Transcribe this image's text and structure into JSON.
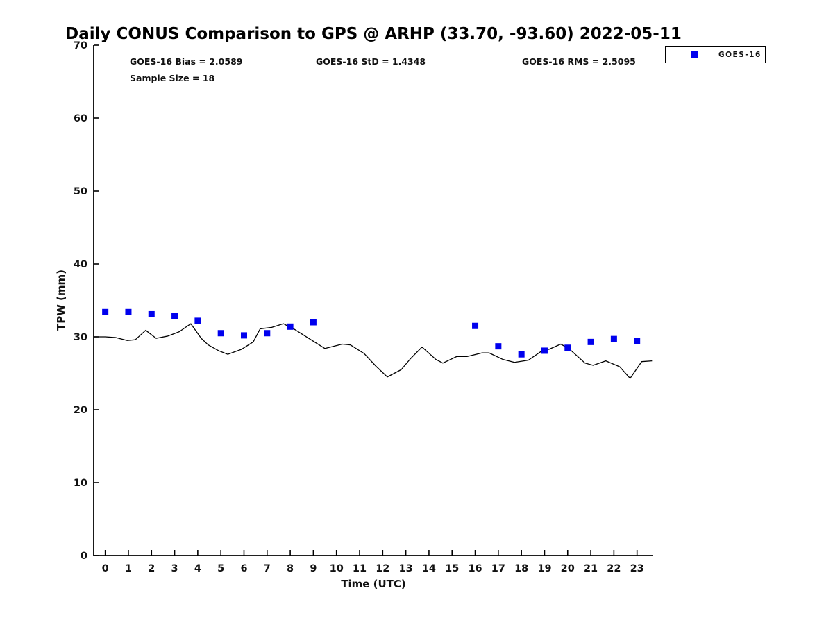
{
  "chart_data": {
    "type": "line+scatter",
    "title": "Daily CONUS Comparison to GPS @ ARHP (33.70, -93.60) 2022-05-11",
    "station": "ARHP",
    "latitude": 33.7,
    "longitude": -93.6,
    "date": "2022-05-11",
    "xlabel": "Time (UTC)",
    "ylabel": "TPW (mm)",
    "xlim": [
      -0.5,
      23.7
    ],
    "ylim": [
      0,
      70
    ],
    "x_ticks": [
      0,
      1,
      2,
      3,
      4,
      5,
      6,
      7,
      8,
      9,
      10,
      11,
      12,
      13,
      14,
      15,
      16,
      17,
      18,
      19,
      20,
      21,
      22,
      23
    ],
    "y_ticks": [
      0,
      10,
      20,
      30,
      40,
      50,
      60,
      70
    ],
    "grid": false,
    "legend_position": "top-right",
    "stats": {
      "bias_text": "GOES-16 Bias = 2.0589",
      "std_text": "GOES-16 StD = 1.4348",
      "rms_text": "GOES-16 RMS = 2.5095",
      "sample_text": "Sample Size = 18",
      "bias": 2.0589,
      "std": 1.4348,
      "rms": 2.5095,
      "sample_size": 18
    },
    "legend": {
      "label": "GOES-16",
      "marker_color": "#0000ee",
      "marker": "square"
    },
    "series": [
      {
        "name": "GPS",
        "type": "line",
        "color": "#000000",
        "points": [
          [
            -0.5,
            30.0
          ],
          [
            0.0,
            30.0
          ],
          [
            0.45,
            29.9
          ],
          [
            0.95,
            29.5
          ],
          [
            1.3,
            29.6
          ],
          [
            1.75,
            30.9
          ],
          [
            2.2,
            29.8
          ],
          [
            2.7,
            30.1
          ],
          [
            3.2,
            30.7
          ],
          [
            3.7,
            31.8
          ],
          [
            4.15,
            29.8
          ],
          [
            4.45,
            28.9
          ],
          [
            4.9,
            28.1
          ],
          [
            5.3,
            27.6
          ],
          [
            5.9,
            28.3
          ],
          [
            6.4,
            29.3
          ],
          [
            6.7,
            31.1
          ],
          [
            7.2,
            31.3
          ],
          [
            7.7,
            31.8
          ],
          [
            8.2,
            31.0
          ],
          [
            8.6,
            30.2
          ],
          [
            9.5,
            28.4
          ],
          [
            10.25,
            29.0
          ],
          [
            10.6,
            28.9
          ],
          [
            11.2,
            27.7
          ],
          [
            11.7,
            26.0
          ],
          [
            12.2,
            24.5
          ],
          [
            12.8,
            25.5
          ],
          [
            13.2,
            27.0
          ],
          [
            13.7,
            28.6
          ],
          [
            14.3,
            26.9
          ],
          [
            14.6,
            26.4
          ],
          [
            15.2,
            27.3
          ],
          [
            15.65,
            27.3
          ],
          [
            16.3,
            27.8
          ],
          [
            16.6,
            27.8
          ],
          [
            17.2,
            26.9
          ],
          [
            17.7,
            26.5
          ],
          [
            18.3,
            26.8
          ],
          [
            18.9,
            28.1
          ],
          [
            19.2,
            28.3
          ],
          [
            19.7,
            29.0
          ],
          [
            20.05,
            28.4
          ],
          [
            20.75,
            26.4
          ],
          [
            21.1,
            26.1
          ],
          [
            21.65,
            26.7
          ],
          [
            22.25,
            25.9
          ],
          [
            22.7,
            24.3
          ],
          [
            23.2,
            26.6
          ],
          [
            23.65,
            26.7
          ]
        ]
      },
      {
        "name": "GOES-16",
        "type": "scatter",
        "marker": "square",
        "color": "#0000ee",
        "points": [
          [
            0,
            33.4
          ],
          [
            1,
            33.4
          ],
          [
            2,
            33.1
          ],
          [
            3,
            32.9
          ],
          [
            4,
            32.2
          ],
          [
            5,
            30.5
          ],
          [
            6,
            30.2
          ],
          [
            7,
            30.5
          ],
          [
            8,
            31.4
          ],
          [
            9,
            32.0
          ],
          [
            16,
            31.5
          ],
          [
            17,
            28.7
          ],
          [
            18,
            27.6
          ],
          [
            19,
            28.1
          ],
          [
            20,
            28.5
          ],
          [
            21,
            29.3
          ],
          [
            22,
            29.7
          ],
          [
            23,
            29.4
          ]
        ]
      }
    ]
  }
}
